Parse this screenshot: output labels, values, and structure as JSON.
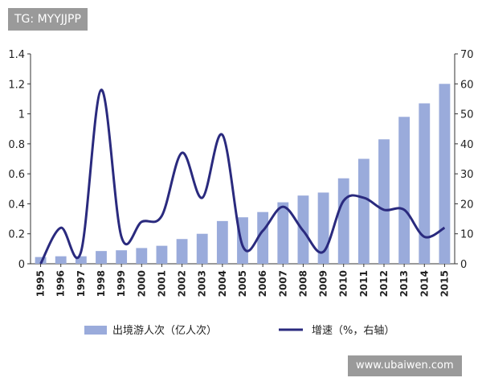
{
  "watermarks": {
    "top": "TG: MYYJJPP",
    "bottom": "www.ubaiwen.com"
  },
  "chart_data": {
    "type": "bar+line",
    "categories": [
      "1995",
      "1996",
      "1997",
      "1998",
      "1999",
      "2000",
      "2001",
      "2002",
      "2003",
      "2004",
      "2005",
      "2006",
      "2007",
      "2008",
      "2009",
      "2010",
      "2011",
      "2012",
      "2013",
      "2014",
      "2015"
    ],
    "series": [
      {
        "name": "出境游人次（亿人次）",
        "type": "bar",
        "axis": "left",
        "color": "#9aabdb",
        "values": [
          0.045,
          0.05,
          0.05,
          0.085,
          0.09,
          0.105,
          0.12,
          0.165,
          0.2,
          0.285,
          0.31,
          0.345,
          0.41,
          0.455,
          0.475,
          0.57,
          0.7,
          0.83,
          0.98,
          1.07,
          1.2
        ]
      },
      {
        "name": "增速（%，右轴）",
        "type": "line",
        "axis": "right",
        "color": "#2a2a7e",
        "values": [
          0,
          12,
          4,
          58,
          9,
          14,
          16,
          37,
          22,
          43,
          6,
          11,
          19,
          11,
          4,
          21,
          22,
          18,
          18,
          9,
          12
        ]
      }
    ],
    "y_left": {
      "min": 0,
      "max": 1.4,
      "ticks": [
        "0",
        "0.2",
        "0.4",
        "0.6",
        "0.8",
        "1",
        "1.2",
        "1.4"
      ]
    },
    "y_right": {
      "min": 0,
      "max": 70,
      "ticks": [
        "0",
        "10",
        "20",
        "30",
        "40",
        "50",
        "60",
        "70"
      ]
    },
    "legend": [
      {
        "label": "出境游人次（亿人次）",
        "kind": "bar"
      },
      {
        "label": "增速（%，右轴）",
        "kind": "line"
      }
    ]
  }
}
